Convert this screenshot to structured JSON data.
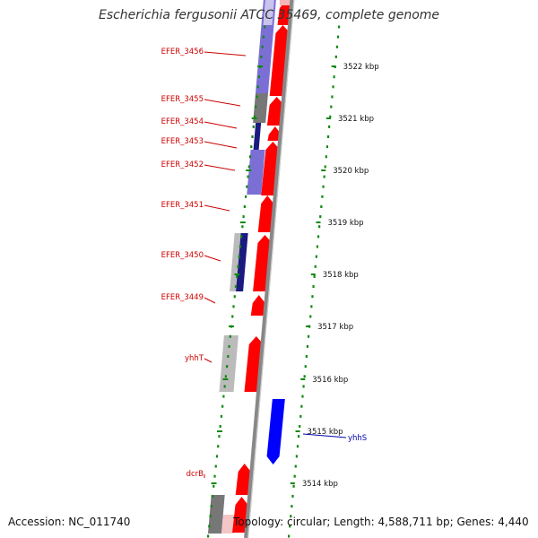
{
  "title": "Escherichia fergusonii ATCC 35469, complete genome",
  "accession": "Accession: NC_011740",
  "summary": "Topology: circular; Length: 4,588,711 bp; Genes: 4,440",
  "colors": {
    "backbone": "#888888",
    "ruler_dots": "#118811",
    "gene_forward": "#ff0000",
    "gene_reverse": "#0000ff",
    "label_forward": "#cc0000",
    "label_reverse": "#0000aa",
    "feature_purple": "#7b6fd6",
    "feature_gray": "#777777",
    "feature_light_gray": "#bbbbbb",
    "feature_navy": "#1a1a80"
  },
  "ruler": [
    {
      "label": "3522 kbp"
    },
    {
      "label": "3521 kbp"
    },
    {
      "label": "3520 kbp"
    },
    {
      "label": "3519 kbp"
    },
    {
      "label": "3518 kbp"
    },
    {
      "label": "3517 kbp"
    },
    {
      "label": "3516 kbp"
    },
    {
      "label": "3515 kbp"
    },
    {
      "label": "3514 kbp"
    }
  ],
  "gene_labels": [
    {
      "text": "EFER_3456",
      "strand": "forward"
    },
    {
      "text": "EFER_3455",
      "strand": "forward"
    },
    {
      "text": "EFER_3454",
      "strand": "forward"
    },
    {
      "text": "EFER_3453",
      "strand": "forward"
    },
    {
      "text": "EFER_3452",
      "strand": "forward"
    },
    {
      "text": "EFER_3451",
      "strand": "forward"
    },
    {
      "text": "EFER_3450",
      "strand": "forward"
    },
    {
      "text": "EFER_3449",
      "strand": "forward"
    },
    {
      "text": "yhhT",
      "strand": "forward"
    },
    {
      "text": "dcrB",
      "strand": "forward"
    },
    {
      "text": "yhhS",
      "strand": "reverse"
    }
  ]
}
